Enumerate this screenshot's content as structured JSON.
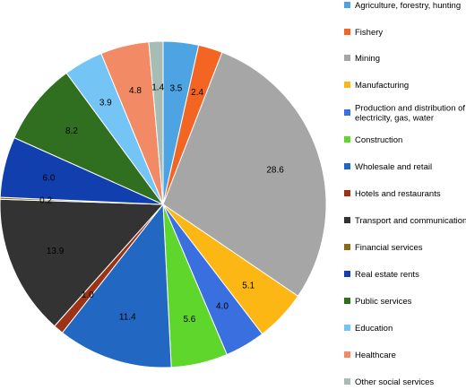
{
  "chart_data": {
    "type": "pie",
    "title": "",
    "legend_position": "right",
    "slices": [
      {
        "label": [
          "Agriculture, forestry, hunting"
        ],
        "value": 3.5,
        "display": "3.5",
        "color": "#4ea3e3"
      },
      {
        "label": [
          "Fishery"
        ],
        "value": 2.4,
        "display": "2.4",
        "color": "#f36523"
      },
      {
        "label": [
          "Mining"
        ],
        "value": 28.6,
        "display": "28.6",
        "color": "#a6a6a6"
      },
      {
        "label": [
          "Manufacturing"
        ],
        "value": 5.1,
        "display": "5.1",
        "color": "#fcb714"
      },
      {
        "label": [
          "Production and distribution of",
          "electricity, gas, water"
        ],
        "value": 4.0,
        "display": "4.0",
        "color": "#3a6fe0"
      },
      {
        "label": [
          "Construction"
        ],
        "value": 5.6,
        "display": "5.6",
        "color": "#5ed62c"
      },
      {
        "label": [
          "Wholesale and retail"
        ],
        "value": 11.4,
        "display": "11.4",
        "color": "#2267c2"
      },
      {
        "label": [
          "Hotels and restaurants"
        ],
        "value": 1.0,
        "display": "1.0",
        "color": "#9c3316"
      },
      {
        "label": [
          "Transport and communications"
        ],
        "value": 13.9,
        "display": "13.9",
        "color": "#333333"
      },
      {
        "label": [
          "Financial services"
        ],
        "value": 0.2,
        "display": "0.2",
        "color": "#8a6b1a"
      },
      {
        "label": [
          "Real estate rents"
        ],
        "value": 6.0,
        "display": "6.0",
        "color": "#113fae"
      },
      {
        "label": [
          "Public services"
        ],
        "value": 8.2,
        "display": "8.2",
        "color": "#2f6f1f"
      },
      {
        "label": [
          "Education"
        ],
        "value": 3.9,
        "display": "3.9",
        "color": "#74c4f6"
      },
      {
        "label": [
          "Healthcare"
        ],
        "value": 4.8,
        "display": "4.8",
        "color": "#f28a65"
      },
      {
        "label": [
          "Other social services"
        ],
        "value": 1.4,
        "display": "1.4",
        "color": "#a7bcb5"
      }
    ]
  }
}
